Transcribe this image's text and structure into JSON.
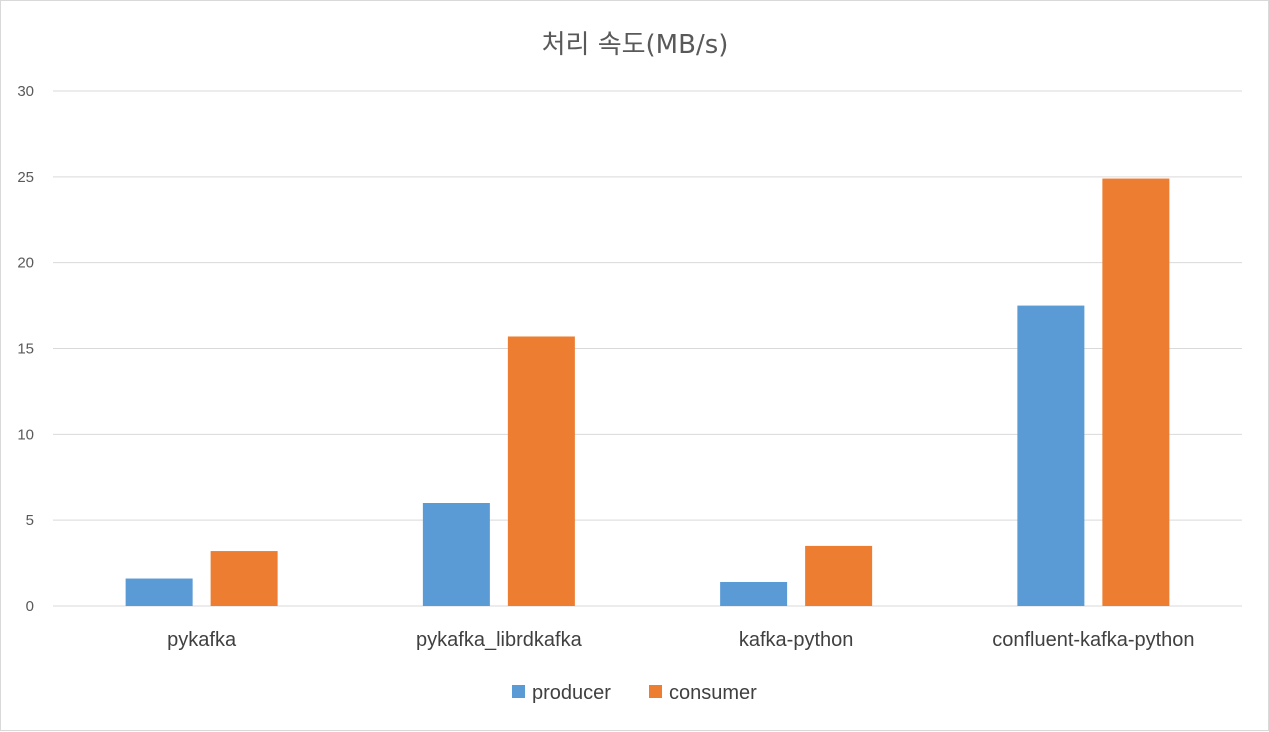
{
  "chart_data": {
    "type": "bar",
    "title": "처리 속도(MB/s)",
    "categories": [
      "pykafka",
      "pykafka_librdkafka",
      "kafka-python",
      "confluent-kafka-python"
    ],
    "series": [
      {
        "name": "producer",
        "values": [
          1.6,
          6.0,
          1.4,
          17.5
        ],
        "color": "#5b9bd5"
      },
      {
        "name": "consumer",
        "values": [
          3.2,
          15.7,
          3.5,
          24.9
        ],
        "color": "#ed7d31"
      }
    ],
    "ylim": [
      0,
      30
    ],
    "yticks": [
      0,
      5,
      10,
      15,
      20,
      25,
      30
    ],
    "grid": true,
    "legend": "bottom"
  }
}
